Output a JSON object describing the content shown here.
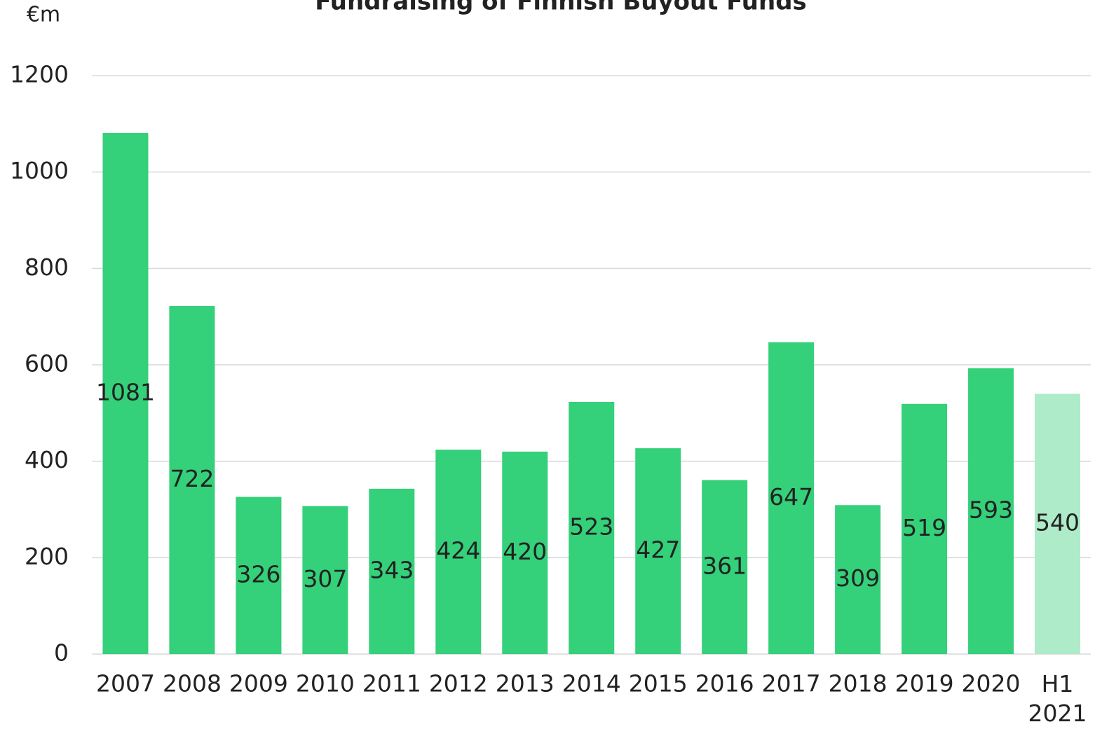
{
  "chart_data": {
    "type": "bar",
    "title": "Fundraising of Finnish Buyout Funds",
    "y_unit": "€m",
    "categories": [
      "2007",
      "2008",
      "2009",
      "2010",
      "2011",
      "2012",
      "2013",
      "2014",
      "2015",
      "2016",
      "2017",
      "2018",
      "2019",
      "2020",
      "H1 2021"
    ],
    "values": [
      1081,
      722,
      326,
      307,
      343,
      424,
      420,
      523,
      427,
      361,
      647,
      309,
      519,
      593,
      540
    ],
    "colors": [
      "#34d07a",
      "#34d07a",
      "#34d07a",
      "#34d07a",
      "#34d07a",
      "#34d07a",
      "#34d07a",
      "#34d07a",
      "#34d07a",
      "#34d07a",
      "#34d07a",
      "#34d07a",
      "#34d07a",
      "#34d07a",
      "#aeebc9"
    ],
    "ylim": [
      0,
      1200
    ],
    "yticks": [
      0,
      200,
      400,
      600,
      800,
      1000,
      1200
    ],
    "grid": true
  }
}
